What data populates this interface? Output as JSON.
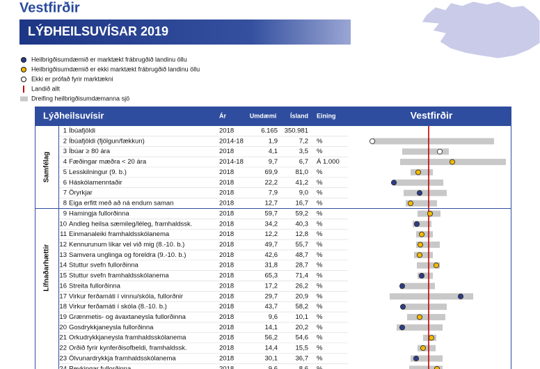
{
  "header": {
    "region": "Vestfirðir",
    "title": "LÝÐHEILSUVÍSAR 2019"
  },
  "legend": [
    {
      "label": "Heilbrigðisumdæmið er marktækt frábrugðið landinu öllu",
      "color": "#2e3d87"
    },
    {
      "label": "Heilbrigðisumdæmið er ekki marktækt frábrugðið landinu öllu",
      "color": "#f5b800"
    },
    {
      "label": "Ekki er prófað fyrir marktækni",
      "color": "#ffffff"
    },
    {
      "label": "Landið allt",
      "color": "#c00000"
    },
    {
      "label": "Dreifing heilbrigðisumdæmanna sjö",
      "color": "#c8c8c8"
    }
  ],
  "table": {
    "columns": {
      "indicator": "Lýðheilsuvísir",
      "year": "Ár",
      "district": "Umdæmi",
      "iceland": "Ísland",
      "unit": "Eining",
      "plot": "Vestfirðir"
    },
    "groups": [
      {
        "label": "Samfélag",
        "rows": [
          0,
          7
        ]
      },
      {
        "label": "Lífnaðarhættir",
        "rows": [
          8,
          23
        ]
      }
    ],
    "plot": {
      "xlim": [
        -111,
        119
      ],
      "reference": 0
    },
    "rows": [
      {
        "nr": 1,
        "name": "Íbúafjöldi",
        "year": "2018",
        "district": "6.165",
        "iceland": "350.981",
        "dot": null,
        "range": null,
        "color": null
      },
      {
        "nr": 2,
        "name": "Íbúafjöldi (fjölgun/fækkun)",
        "year": "2014-18",
        "district": "1,9",
        "iceland": "7,2",
        "unit": "%",
        "dot": -81,
        "range": [
          -81,
          94
        ],
        "color": "#ffffff"
      },
      {
        "nr": 3,
        "name": "Íbúar ≥ 80 ára",
        "year": "2018",
        "district": "4,1",
        "iceland": "3,5",
        "unit": "%",
        "dot": 16,
        "range": [
          -38,
          29
        ],
        "color": "#ffffff"
      },
      {
        "nr": 4,
        "name": "Fæðingar mæðra < 20 ára",
        "year": "2014-18",
        "district": "9,7",
        "iceland": "6,7",
        "unit": "Á 1.000",
        "dot": 34,
        "range": [
          -41,
          111
        ],
        "color": "#f5b800"
      },
      {
        "nr": 5,
        "name": "Lesskilningur (9. b.)",
        "year": "2018",
        "district": "69,9",
        "iceland": "81,0",
        "unit": "%",
        "dot": -15,
        "range": [
          -26,
          6
        ],
        "color": "#f5b800"
      },
      {
        "nr": 6,
        "name": "Háskólamenntaðir",
        "year": "2018",
        "district": "22,2",
        "iceland": "41,2",
        "unit": "%",
        "dot": -50,
        "range": [
          -50,
          21
        ],
        "color": "#2e3d87"
      },
      {
        "nr": 7,
        "name": "Öryrkjar",
        "year": "2018",
        "district": "7,9",
        "iceland": "9,0",
        "unit": "%",
        "dot": -13,
        "range": [
          -36,
          26
        ],
        "color": "#2e3d87"
      },
      {
        "nr": 8,
        "name": "Eiga erfitt með að ná endum saman",
        "year": "2018",
        "district": "12,7",
        "iceland": "16,7",
        "unit": "%",
        "dot": -26,
        "range": [
          -33,
          12
        ],
        "color": "#f5b800"
      },
      {
        "nr": 9,
        "name": "Hamingja fullorðinna",
        "year": "2018",
        "district": "59,7",
        "iceland": "59,2",
        "unit": "%",
        "dot": 2,
        "range": [
          -16,
          17
        ],
        "color": "#f5b800"
      },
      {
        "nr": 10,
        "name": "Andleg heilsa sæmileg/léleg, framhaldssk.",
        "year": "2018",
        "district": "34,2",
        "iceland": "40,3",
        "unit": "%",
        "dot": -17,
        "range": [
          -23,
          4
        ],
        "color": "#2e3d87"
      },
      {
        "nr": 11,
        "name": "Einmanaleiki framhaldsskólanema",
        "year": "2018",
        "district": "12,2",
        "iceland": "12,8",
        "unit": "%",
        "dot": -10,
        "range": [
          -18,
          6
        ],
        "color": "#f5b800"
      },
      {
        "nr": 12,
        "name": "Kennurunum líkar vel við mig (8.-10. b.)",
        "year": "2018",
        "district": "49,7",
        "iceland": "55,7",
        "unit": "%",
        "dot": -12,
        "range": [
          -18,
          16
        ],
        "color": "#f5b800"
      },
      {
        "nr": 13,
        "name": "Samvera unglinga og foreldra (9.-10. b.)",
        "year": "2018",
        "district": "42,6",
        "iceland": "48,7",
        "unit": "%",
        "dot": -13,
        "range": [
          -21,
          6
        ],
        "color": "#f5b800"
      },
      {
        "nr": 14,
        "name": "Stuttur svefn fullorðinna",
        "year": "2018",
        "district": "31,8",
        "iceland": "28,7",
        "unit": "%",
        "dot": 11,
        "range": [
          -17,
          16
        ],
        "color": "#f5b800"
      },
      {
        "nr": 15,
        "name": "Stuttur svefn framhaldsskólanema",
        "year": "2018",
        "district": "65,3",
        "iceland": "71,4",
        "unit": "%",
        "dot": -10,
        "range": [
          -16,
          6
        ],
        "color": "#2e3d87"
      },
      {
        "nr": 16,
        "name": "Streita fullorðinna",
        "year": "2018",
        "district": "17,2",
        "iceland": "26,2",
        "unit": "%",
        "dot": -38,
        "range": [
          -41,
          9
        ],
        "color": "#2e3d87"
      },
      {
        "nr": 17,
        "name": "Virkur ferðamáti í vinnu/skóla, fullorðnir",
        "year": "2018",
        "district": "29,7",
        "iceland": "20,9",
        "unit": "%",
        "dot": 46,
        "range": [
          -56,
          64
        ],
        "color": "#2e3d87"
      },
      {
        "nr": 18,
        "name": "Virkur ferðamáti í skóla (8.-10. b.)",
        "year": "2018",
        "district": "43,7",
        "iceland": "58,2",
        "unit": "%",
        "dot": -37,
        "range": [
          -38,
          26
        ],
        "color": "#2e3d87"
      },
      {
        "nr": 19,
        "name": "Grænmetis- og ávaxtaneysla fullorðinna",
        "year": "2018",
        "district": "9,6",
        "iceland": "10,1",
        "unit": "%",
        "dot": -13,
        "range": [
          -31,
          24
        ],
        "color": "#f5b800"
      },
      {
        "nr": 20,
        "name": "Gosdrykkjaneysla fullorðinna",
        "year": "2018",
        "district": "14,1",
        "iceland": "20,2",
        "unit": "%",
        "dot": -38,
        "range": [
          -46,
          20
        ],
        "color": "#2e3d87"
      },
      {
        "nr": 21,
        "name": "Orkudrykkjaneysla framhaldsskólanema",
        "year": "2018",
        "district": "56,2",
        "iceland": "54,6",
        "unit": "%",
        "dot": 4,
        "range": [
          -8,
          11
        ],
        "color": "#f5b800"
      },
      {
        "nr": 22,
        "name": "Orðið fyrir kynferðisofbeldi, framhaldssk.",
        "year": "2018",
        "district": "14,4",
        "iceland": "15,5",
        "unit": "%",
        "dot": -8,
        "range": [
          -16,
          10
        ],
        "color": "#f5b800"
      },
      {
        "nr": 23,
        "name": "Ölvunardrykkja framhaldsskólanema",
        "year": "2018",
        "district": "30,1",
        "iceland": "36,7",
        "unit": "%",
        "dot": -18,
        "range": [
          -26,
          20
        ],
        "color": "#2e3d87"
      },
      {
        "nr": 24,
        "name": "Reykingar fullorðinna",
        "year": "2018",
        "district": "9,6",
        "iceland": "8,6",
        "unit": "%",
        "dot": 12,
        "range": [
          -28,
          20
        ],
        "color": "#f5b800"
      }
    ]
  }
}
